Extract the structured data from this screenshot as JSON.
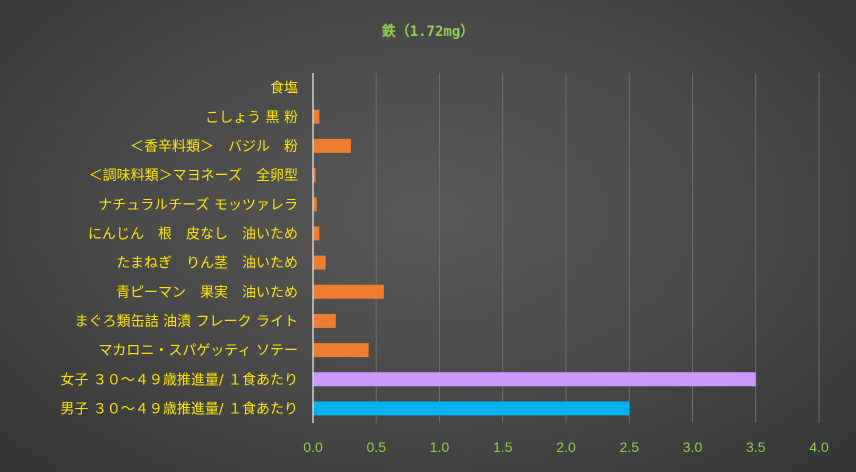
{
  "chart_data": {
    "type": "bar",
    "orientation": "horizontal",
    "title": "鉄（1.72mg）",
    "categories": [
      "食塩",
      "こしょう 黒 粉",
      "＜香辛料類＞　バジル　粉",
      "＜調味料類＞マヨネーズ　全卵型",
      "ナチュラルチーズ モッツァレラ",
      "にんじん　根　皮なし　油いため",
      "たまねぎ　りん茎　油いため",
      "青ピーマン　果実　油いため",
      "まぐろ類缶詰 油漬 フレーク ライト",
      "マカロニ・スパゲッティ ソテー",
      "女子 ３０～４９歳推進量/ １食あたり",
      "男子 ３０～４９歳推進量/ １食あたり"
    ],
    "values": [
      0.0,
      0.05,
      0.3,
      0.02,
      0.03,
      0.05,
      0.1,
      0.56,
      0.18,
      0.44,
      3.5,
      2.5
    ],
    "bar_colors": [
      "#ED7D31",
      "#ED7D31",
      "#ED7D31",
      "#ED7D31",
      "#ED7D31",
      "#ED7D31",
      "#ED7D31",
      "#ED7D31",
      "#ED7D31",
      "#ED7D31",
      "#CC99FF",
      "#00B0F0"
    ],
    "xlim": [
      0,
      4.0
    ],
    "xticks": [
      "0.0",
      "0.5",
      "1.0",
      "1.5",
      "2.0",
      "2.5",
      "3.0",
      "3.5",
      "4.0"
    ],
    "xlabel": "",
    "ylabel": "",
    "grid": true,
    "colors": {
      "title": "#92D050",
      "category_text": "#FFE600",
      "tick_text": "#92D050",
      "gridline": "#6E6E6E",
      "axis_line": "#D0D0D0"
    }
  }
}
